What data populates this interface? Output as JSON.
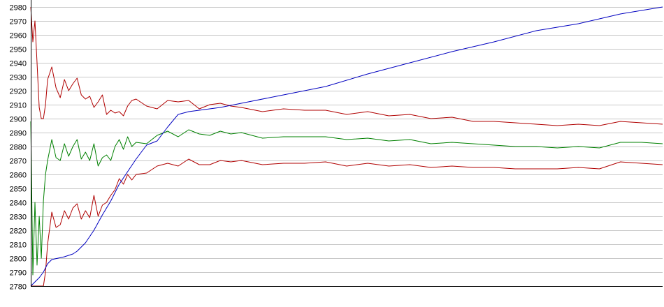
{
  "chart_data": {
    "type": "line",
    "title": "",
    "xlabel": "",
    "ylabel": "",
    "xlim": [
      0,
      300
    ],
    "ylim": [
      2780,
      2980
    ],
    "yticks": [
      2780,
      2790,
      2800,
      2810,
      2820,
      2830,
      2840,
      2850,
      2860,
      2870,
      2880,
      2890,
      2900,
      2910,
      2920,
      2930,
      2940,
      2950,
      2960,
      2970,
      2980
    ],
    "grid": true,
    "legend": "none",
    "colors": {
      "upper_band": "#b00000",
      "mean": "#008000",
      "lower_band": "#b00000",
      "trend": "#0000c0",
      "grid": "#c8c8c8",
      "axis": "#000000"
    },
    "series": [
      {
        "key": "upper_band",
        "x": [
          0,
          1,
          2,
          3,
          4,
          5,
          6,
          7,
          8,
          10,
          12,
          14,
          16,
          18,
          20,
          22,
          24,
          26,
          28,
          30,
          32,
          34,
          36,
          38,
          40,
          42,
          44,
          46,
          48,
          50,
          55,
          60,
          65,
          70,
          75,
          80,
          85,
          90,
          95,
          100,
          110,
          120,
          130,
          140,
          150,
          160,
          170,
          180,
          190,
          200,
          210,
          220,
          230,
          240,
          250,
          260,
          270,
          280,
          290,
          300
        ],
        "values": [
          2980,
          2955,
          2970,
          2940,
          2908,
          2900,
          2900,
          2910,
          2928,
          2937,
          2922,
          2915,
          2928,
          2920,
          2925,
          2929,
          2917,
          2914,
          2916,
          2908,
          2912,
          2917,
          2903,
          2906,
          2904,
          2905,
          2902,
          2909,
          2913,
          2914,
          2909,
          2907,
          2913,
          2912,
          2913,
          2907,
          2910,
          2911,
          2909,
          2908,
          2905,
          2907,
          2906,
          2906,
          2903,
          2905,
          2902,
          2903,
          2900,
          2901,
          2898,
          2898,
          2897,
          2896,
          2895,
          2896,
          2895,
          2898,
          2897,
          2896
        ]
      },
      {
        "key": "mean",
        "x": [
          0,
          1,
          2,
          3,
          4,
          5,
          6,
          7,
          8,
          10,
          12,
          14,
          16,
          18,
          20,
          22,
          24,
          26,
          28,
          30,
          32,
          34,
          36,
          38,
          40,
          42,
          44,
          46,
          48,
          50,
          55,
          60,
          65,
          70,
          75,
          80,
          85,
          90,
          95,
          100,
          110,
          120,
          130,
          140,
          150,
          160,
          170,
          180,
          190,
          200,
          210,
          220,
          230,
          240,
          250,
          260,
          270,
          280,
          290,
          300
        ],
        "values": [
          2898,
          2788,
          2840,
          2795,
          2830,
          2800,
          2841,
          2860,
          2870,
          2885,
          2872,
          2870,
          2882,
          2873,
          2880,
          2885,
          2871,
          2876,
          2870,
          2882,
          2866,
          2872,
          2874,
          2870,
          2880,
          2885,
          2878,
          2887,
          2880,
          2883,
          2882,
          2888,
          2891,
          2887,
          2892,
          2889,
          2888,
          2891,
          2889,
          2890,
          2886,
          2887,
          2887,
          2887,
          2885,
          2886,
          2884,
          2885,
          2882,
          2883,
          2882,
          2881,
          2880,
          2880,
          2879,
          2880,
          2879,
          2883,
          2883,
          2882
        ]
      },
      {
        "key": "lower_band",
        "x": [
          0,
          1,
          2,
          3,
          4,
          5,
          6,
          7,
          8,
          10,
          12,
          14,
          16,
          18,
          20,
          22,
          24,
          26,
          28,
          30,
          32,
          34,
          36,
          38,
          40,
          42,
          44,
          46,
          48,
          50,
          55,
          60,
          65,
          70,
          75,
          80,
          85,
          90,
          95,
          100,
          110,
          120,
          130,
          140,
          150,
          160,
          170,
          180,
          190,
          200,
          210,
          220,
          230,
          240,
          250,
          260,
          270,
          280,
          290,
          300
        ],
        "values": [
          2780,
          2780,
          2780,
          2780,
          2780,
          2780,
          2780,
          2790,
          2810,
          2833,
          2822,
          2824,
          2834,
          2828,
          2836,
          2839,
          2828,
          2834,
          2829,
          2845,
          2830,
          2838,
          2840,
          2845,
          2849,
          2857,
          2853,
          2860,
          2856,
          2860,
          2861,
          2866,
          2868,
          2866,
          2871,
          2867,
          2867,
          2870,
          2869,
          2870,
          2867,
          2868,
          2868,
          2869,
          2866,
          2868,
          2866,
          2867,
          2865,
          2866,
          2865,
          2865,
          2864,
          2864,
          2864,
          2865,
          2864,
          2869,
          2868,
          2867
        ]
      },
      {
        "key": "trend",
        "x": [
          0,
          4,
          6,
          8,
          10,
          13,
          16,
          18,
          20,
          22,
          24,
          26,
          30,
          34,
          38,
          42,
          46,
          50,
          55,
          60,
          65,
          70,
          75,
          80,
          90,
          100,
          120,
          140,
          160,
          180,
          200,
          220,
          240,
          260,
          280,
          300
        ],
        "values": [
          2780,
          2786,
          2790,
          2796,
          2799,
          2800,
          2801,
          2802,
          2803,
          2805,
          2808,
          2811,
          2820,
          2831,
          2841,
          2853,
          2862,
          2871,
          2881,
          2884,
          2894,
          2903,
          2905,
          2906,
          2908,
          2911,
          2917,
          2923,
          2932,
          2940,
          2948,
          2955,
          2963,
          2968,
          2975,
          2980
        ]
      }
    ]
  }
}
